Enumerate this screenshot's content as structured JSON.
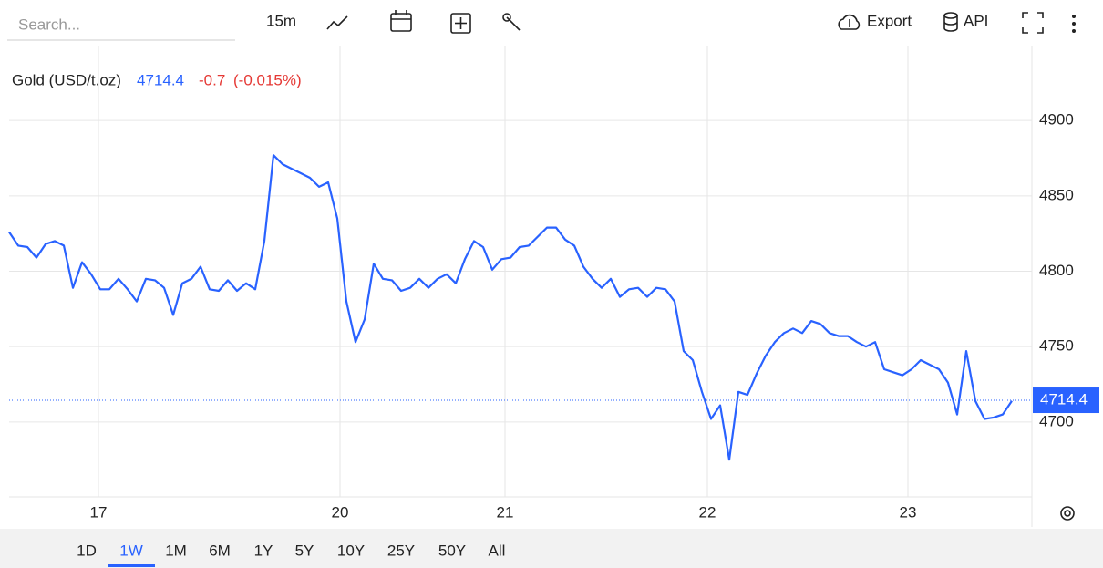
{
  "toolbar": {
    "search_placeholder": "Search...",
    "interval": "15m",
    "export": "Export",
    "api": "API"
  },
  "ranges": [
    "1D",
    "1W",
    "1M",
    "6M",
    "1Y",
    "5Y",
    "10Y",
    "25Y",
    "50Y",
    "All"
  ],
  "selected_range": "1W",
  "chart_data": {
    "type": "line",
    "title": "Gold (USD/t.oz)",
    "last_price": 4714.4,
    "change": -0.7,
    "change_label": "-0.7",
    "change_pct_label": "(-0.015%)",
    "xlim": [
      0,
      112
    ],
    "xticks": [
      {
        "value": 9.8,
        "label": "17"
      },
      {
        "value": 36.3,
        "label": "20"
      },
      {
        "value": 54.4,
        "label": "21"
      },
      {
        "value": 76.6,
        "label": "22"
      },
      {
        "value": 98.6,
        "label": "23"
      }
    ],
    "ylim": [
      4650,
      4950
    ],
    "yticks": [
      4700,
      4750,
      4800,
      4850,
      4900
    ],
    "grid": true,
    "series": [
      {
        "name": "Gold (USD/t.oz)",
        "color": "#2962ff",
        "values": [
          4826,
          4817,
          4816,
          4809,
          4818,
          4820,
          4817,
          4789,
          4806,
          4798,
          4788,
          4788,
          4795,
          4788,
          4780,
          4795,
          4794,
          4789,
          4771,
          4792,
          4795,
          4803,
          4788,
          4787,
          4794,
          4787,
          4792,
          4788,
          4820,
          4877,
          4871,
          4868,
          4865,
          4862,
          4856,
          4859,
          4835,
          4780,
          4753,
          4768,
          4805,
          4795,
          4794,
          4787,
          4789,
          4795,
          4789,
          4795,
          4798,
          4792,
          4808,
          4820,
          4816,
          4801,
          4808,
          4809,
          4816,
          4817,
          4823,
          4829,
          4829,
          4821,
          4817,
          4803,
          4795,
          4789,
          4795,
          4783,
          4788,
          4789,
          4783,
          4789,
          4788,
          4780,
          4747,
          4741,
          4720,
          4702,
          4711,
          4675,
          4720,
          4718,
          4732,
          4744,
          4753,
          4759,
          4762,
          4759,
          4767,
          4765,
          4759,
          4757,
          4757,
          4753,
          4750,
          4753,
          4735,
          4733,
          4731,
          4735,
          4741,
          4738,
          4735,
          4726,
          4705,
          4747,
          4714,
          4702,
          4703,
          4705,
          4714
        ]
      }
    ]
  }
}
